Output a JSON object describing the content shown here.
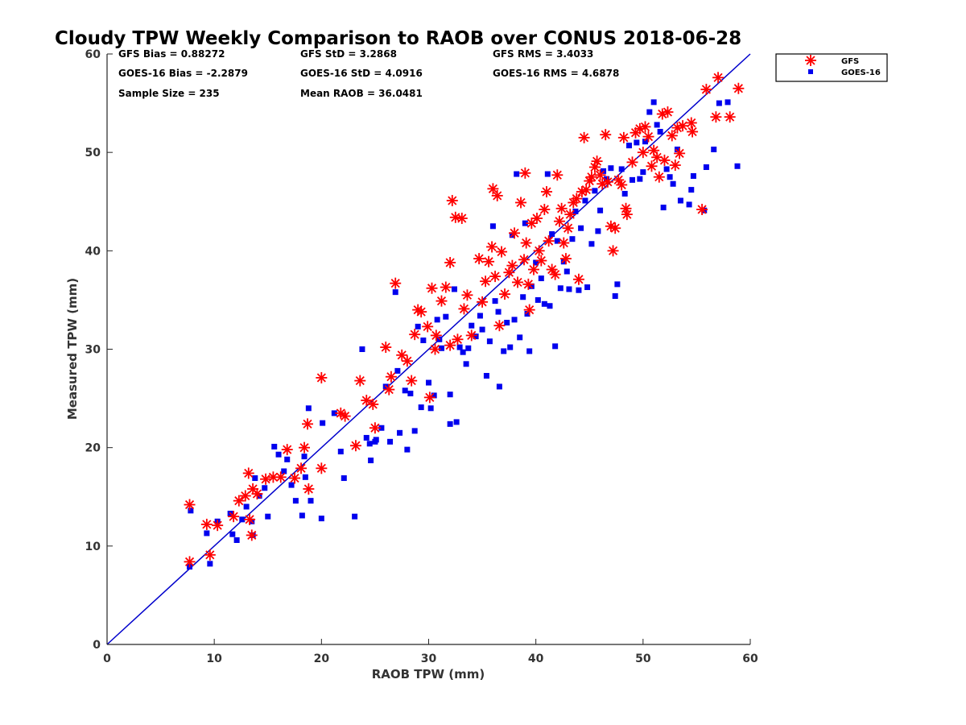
{
  "chart_data": {
    "type": "scatter",
    "title": "Cloudy TPW Weekly Comparison to RAOB over CONUS 2018-06-28",
    "xlabel": "RAOB TPW (mm)",
    "ylabel": "Measured TPW (mm)",
    "xlim": [
      0,
      60
    ],
    "ylim": [
      0,
      60
    ],
    "xticks": [
      "0",
      "10",
      "20",
      "30",
      "40",
      "50",
      "60"
    ],
    "yticks": [
      "0",
      "10",
      "20",
      "30",
      "40",
      "50",
      "60"
    ],
    "grid": false,
    "legend_position": "outside-top-right",
    "reference_line": {
      "type": "one-to-one",
      "color": "#0000cc"
    },
    "stats": [
      "GFS Bias = 0.88272",
      "GFS StD = 3.2868",
      "GFS RMS = 3.4033",
      "GOES-16 Bias = -2.2879",
      "GOES-16 StD = 4.0916",
      "GOES-16 RMS = 4.6878",
      "Sample Size = 235",
      "Mean RAOB = 36.0481"
    ],
    "series": [
      {
        "name": "GFS",
        "marker": "asterisk",
        "color": "#ff0000",
        "points": [
          [
            7.7,
            14.2
          ],
          [
            7.7,
            8.4
          ],
          [
            9.3,
            12.2
          ],
          [
            9.6,
            9.1
          ],
          [
            10.3,
            12.1
          ],
          [
            11.8,
            13.0
          ],
          [
            12.3,
            14.6
          ],
          [
            12.9,
            15.1
          ],
          [
            13.2,
            17.4
          ],
          [
            13.3,
            12.7
          ],
          [
            13.5,
            11.1
          ],
          [
            13.6,
            15.8
          ],
          [
            14.0,
            15.3
          ],
          [
            14.8,
            16.8
          ],
          [
            15.5,
            17.0
          ],
          [
            16.2,
            17.0
          ],
          [
            16.8,
            19.8
          ],
          [
            17.5,
            16.9
          ],
          [
            18.1,
            17.9
          ],
          [
            18.4,
            20.0
          ],
          [
            18.7,
            22.4
          ],
          [
            18.8,
            15.8
          ],
          [
            20.0,
            27.1
          ],
          [
            20.0,
            17.9
          ],
          [
            21.8,
            23.5
          ],
          [
            22.2,
            23.2
          ],
          [
            23.2,
            20.2
          ],
          [
            23.6,
            26.8
          ],
          [
            24.2,
            24.8
          ],
          [
            24.8,
            24.4
          ],
          [
            25.0,
            22.0
          ],
          [
            26.0,
            30.2
          ],
          [
            26.3,
            25.9
          ],
          [
            26.5,
            27.2
          ],
          [
            26.9,
            36.7
          ],
          [
            27.5,
            29.4
          ],
          [
            28.0,
            28.8
          ],
          [
            28.4,
            26.8
          ],
          [
            28.7,
            31.5
          ],
          [
            29.0,
            34.0
          ],
          [
            29.3,
            33.8
          ],
          [
            29.9,
            32.3
          ],
          [
            30.1,
            25.1
          ],
          [
            30.3,
            36.2
          ],
          [
            30.6,
            30.0
          ],
          [
            30.7,
            31.4
          ],
          [
            31.2,
            34.9
          ],
          [
            31.6,
            36.3
          ],
          [
            32.0,
            38.8
          ],
          [
            32.0,
            30.4
          ],
          [
            32.2,
            45.1
          ],
          [
            32.5,
            43.4
          ],
          [
            32.7,
            31.0
          ],
          [
            33.1,
            43.3
          ],
          [
            33.3,
            34.1
          ],
          [
            33.6,
            35.5
          ],
          [
            34.0,
            31.4
          ],
          [
            34.7,
            39.2
          ],
          [
            35.0,
            34.8
          ],
          [
            35.3,
            36.9
          ],
          [
            35.6,
            38.9
          ],
          [
            35.9,
            40.4
          ],
          [
            36.0,
            46.3
          ],
          [
            36.2,
            37.4
          ],
          [
            36.4,
            45.6
          ],
          [
            36.6,
            32.4
          ],
          [
            36.8,
            39.9
          ],
          [
            37.1,
            35.6
          ],
          [
            37.5,
            37.8
          ],
          [
            37.8,
            38.5
          ],
          [
            38.0,
            41.8
          ],
          [
            38.3,
            36.8
          ],
          [
            38.6,
            44.9
          ],
          [
            38.9,
            39.1
          ],
          [
            39.0,
            47.9
          ],
          [
            39.1,
            40.8
          ],
          [
            39.3,
            36.6
          ],
          [
            39.4,
            34.0
          ],
          [
            39.6,
            42.8
          ],
          [
            39.8,
            38.1
          ],
          [
            40.1,
            43.3
          ],
          [
            40.3,
            40.0
          ],
          [
            40.5,
            39.0
          ],
          [
            40.8,
            44.2
          ],
          [
            41.0,
            46.0
          ],
          [
            41.2,
            41.0
          ],
          [
            41.5,
            38.1
          ],
          [
            41.8,
            37.6
          ],
          [
            42.0,
            47.7
          ],
          [
            42.2,
            43.0
          ],
          [
            42.4,
            44.3
          ],
          [
            42.6,
            40.8
          ],
          [
            42.8,
            39.2
          ],
          [
            43.0,
            42.3
          ],
          [
            43.2,
            43.7
          ],
          [
            43.5,
            44.9
          ],
          [
            43.8,
            45.3
          ],
          [
            44.0,
            37.1
          ],
          [
            44.3,
            46.0
          ],
          [
            44.5,
            51.5
          ],
          [
            44.7,
            46.2
          ],
          [
            45.0,
            47.1
          ],
          [
            45.2,
            47.5
          ],
          [
            45.5,
            48.5
          ],
          [
            45.7,
            49.1
          ],
          [
            46.0,
            47.7
          ],
          [
            46.2,
            46.8
          ],
          [
            46.5,
            51.8
          ],
          [
            46.7,
            47.0
          ],
          [
            47.0,
            42.5
          ],
          [
            47.2,
            40.0
          ],
          [
            47.4,
            42.3
          ],
          [
            47.7,
            47.2
          ],
          [
            48.0,
            46.7
          ],
          [
            48.2,
            51.5
          ],
          [
            48.4,
            44.3
          ],
          [
            48.5,
            43.7
          ],
          [
            49.0,
            49.0
          ],
          [
            49.3,
            52.0
          ],
          [
            49.7,
            52.4
          ],
          [
            50.0,
            50.0
          ],
          [
            50.2,
            52.6
          ],
          [
            50.5,
            51.6
          ],
          [
            50.8,
            48.6
          ],
          [
            51.0,
            50.2
          ],
          [
            51.3,
            49.5
          ],
          [
            51.5,
            47.5
          ],
          [
            51.8,
            53.9
          ],
          [
            52.0,
            49.2
          ],
          [
            52.3,
            54.1
          ],
          [
            52.7,
            51.7
          ],
          [
            53.0,
            48.7
          ],
          [
            53.2,
            52.5
          ],
          [
            53.4,
            49.9
          ],
          [
            53.7,
            52.7
          ],
          [
            54.5,
            53.0
          ],
          [
            54.6,
            52.1
          ],
          [
            55.5,
            44.2
          ],
          [
            55.9,
            56.4
          ],
          [
            57.0,
            57.6
          ],
          [
            56.8,
            53.6
          ],
          [
            58.1,
            53.6
          ],
          [
            58.9,
            56.5
          ]
        ]
      },
      {
        "name": "GOES-16",
        "marker": "square",
        "color": "#0000ee",
        "points": [
          [
            7.8,
            13.6
          ],
          [
            7.7,
            7.9
          ],
          [
            9.3,
            11.3
          ],
          [
            9.6,
            8.2
          ],
          [
            10.3,
            12.5
          ],
          [
            11.5,
            13.3
          ],
          [
            11.7,
            11.2
          ],
          [
            12.1,
            10.6
          ],
          [
            12.6,
            12.7
          ],
          [
            13.0,
            14.0
          ],
          [
            13.5,
            12.5
          ],
          [
            13.6,
            11.1
          ],
          [
            13.8,
            16.9
          ],
          [
            14.2,
            15.1
          ],
          [
            14.7,
            15.9
          ],
          [
            15.0,
            13.0
          ],
          [
            15.6,
            20.1
          ],
          [
            16.0,
            19.3
          ],
          [
            16.5,
            17.6
          ],
          [
            16.8,
            18.8
          ],
          [
            17.2,
            16.2
          ],
          [
            17.6,
            14.6
          ],
          [
            18.2,
            13.1
          ],
          [
            18.4,
            19.1
          ],
          [
            18.5,
            17.0
          ],
          [
            18.8,
            24.0
          ],
          [
            19.0,
            14.6
          ],
          [
            20.0,
            12.8
          ],
          [
            20.1,
            22.5
          ],
          [
            21.2,
            23.5
          ],
          [
            21.8,
            19.6
          ],
          [
            22.1,
            16.9
          ],
          [
            23.1,
            13.0
          ],
          [
            23.8,
            30.0
          ],
          [
            24.2,
            21.0
          ],
          [
            24.5,
            20.4
          ],
          [
            24.6,
            18.7
          ],
          [
            25.0,
            20.6
          ],
          [
            25.1,
            20.8
          ],
          [
            25.6,
            22.0
          ],
          [
            26.0,
            26.2
          ],
          [
            26.4,
            20.6
          ],
          [
            26.9,
            35.8
          ],
          [
            27.1,
            27.8
          ],
          [
            27.3,
            21.5
          ],
          [
            27.8,
            25.8
          ],
          [
            28.0,
            19.8
          ],
          [
            28.3,
            25.5
          ],
          [
            28.7,
            21.7
          ],
          [
            29.0,
            32.3
          ],
          [
            29.3,
            24.1
          ],
          [
            29.5,
            30.9
          ],
          [
            30.0,
            26.6
          ],
          [
            30.2,
            24.0
          ],
          [
            30.5,
            25.3
          ],
          [
            30.8,
            33.0
          ],
          [
            31.0,
            31.0
          ],
          [
            31.2,
            30.1
          ],
          [
            31.6,
            33.3
          ],
          [
            32.0,
            25.4
          ],
          [
            32.0,
            22.4
          ],
          [
            32.4,
            36.1
          ],
          [
            32.6,
            22.6
          ],
          [
            32.9,
            30.2
          ],
          [
            33.2,
            29.7
          ],
          [
            33.5,
            28.5
          ],
          [
            33.7,
            30.1
          ],
          [
            34.0,
            32.4
          ],
          [
            34.4,
            31.3
          ],
          [
            34.8,
            33.4
          ],
          [
            35.0,
            32.0
          ],
          [
            35.4,
            27.3
          ],
          [
            35.7,
            30.8
          ],
          [
            36.0,
            42.5
          ],
          [
            36.2,
            34.9
          ],
          [
            36.5,
            33.8
          ],
          [
            36.6,
            26.2
          ],
          [
            37.0,
            29.8
          ],
          [
            37.3,
            32.7
          ],
          [
            37.6,
            30.2
          ],
          [
            37.8,
            41.6
          ],
          [
            38.0,
            33.0
          ],
          [
            38.2,
            47.8
          ],
          [
            38.5,
            31.2
          ],
          [
            38.8,
            35.3
          ],
          [
            39.0,
            42.8
          ],
          [
            39.2,
            33.6
          ],
          [
            39.4,
            29.8
          ],
          [
            39.6,
            36.4
          ],
          [
            40.0,
            38.8
          ],
          [
            40.2,
            35.0
          ],
          [
            40.5,
            37.2
          ],
          [
            40.8,
            34.6
          ],
          [
            41.1,
            47.8
          ],
          [
            41.3,
            34.4
          ],
          [
            41.5,
            41.7
          ],
          [
            41.8,
            30.3
          ],
          [
            42.0,
            41.0
          ],
          [
            42.3,
            36.2
          ],
          [
            42.6,
            38.9
          ],
          [
            42.9,
            37.9
          ],
          [
            43.1,
            36.1
          ],
          [
            43.4,
            41.2
          ],
          [
            43.7,
            44.0
          ],
          [
            44.0,
            36.0
          ],
          [
            44.2,
            42.3
          ],
          [
            44.6,
            45.1
          ],
          [
            44.8,
            36.3
          ],
          [
            45.2,
            40.7
          ],
          [
            45.5,
            46.1
          ],
          [
            45.8,
            42.0
          ],
          [
            46.0,
            44.1
          ],
          [
            46.3,
            48.1
          ],
          [
            46.6,
            47.3
          ],
          [
            47.0,
            48.4
          ],
          [
            47.4,
            35.4
          ],
          [
            47.6,
            36.6
          ],
          [
            48.0,
            48.3
          ],
          [
            48.3,
            45.8
          ],
          [
            48.7,
            50.7
          ],
          [
            49.0,
            47.2
          ],
          [
            49.4,
            51.0
          ],
          [
            49.7,
            47.3
          ],
          [
            50.0,
            48.0
          ],
          [
            50.2,
            51.1
          ],
          [
            50.6,
            54.1
          ],
          [
            51.0,
            55.1
          ],
          [
            51.3,
            52.8
          ],
          [
            51.6,
            52.1
          ],
          [
            51.9,
            44.4
          ],
          [
            52.2,
            48.3
          ],
          [
            52.5,
            47.5
          ],
          [
            52.8,
            46.8
          ],
          [
            53.2,
            50.3
          ],
          [
            53.5,
            45.1
          ],
          [
            54.3,
            44.7
          ],
          [
            54.5,
            46.2
          ],
          [
            54.7,
            47.6
          ],
          [
            55.7,
            44.1
          ],
          [
            55.9,
            48.5
          ],
          [
            56.6,
            50.3
          ],
          [
            57.1,
            55.0
          ],
          [
            57.9,
            55.1
          ],
          [
            58.8,
            48.6
          ]
        ]
      }
    ]
  }
}
